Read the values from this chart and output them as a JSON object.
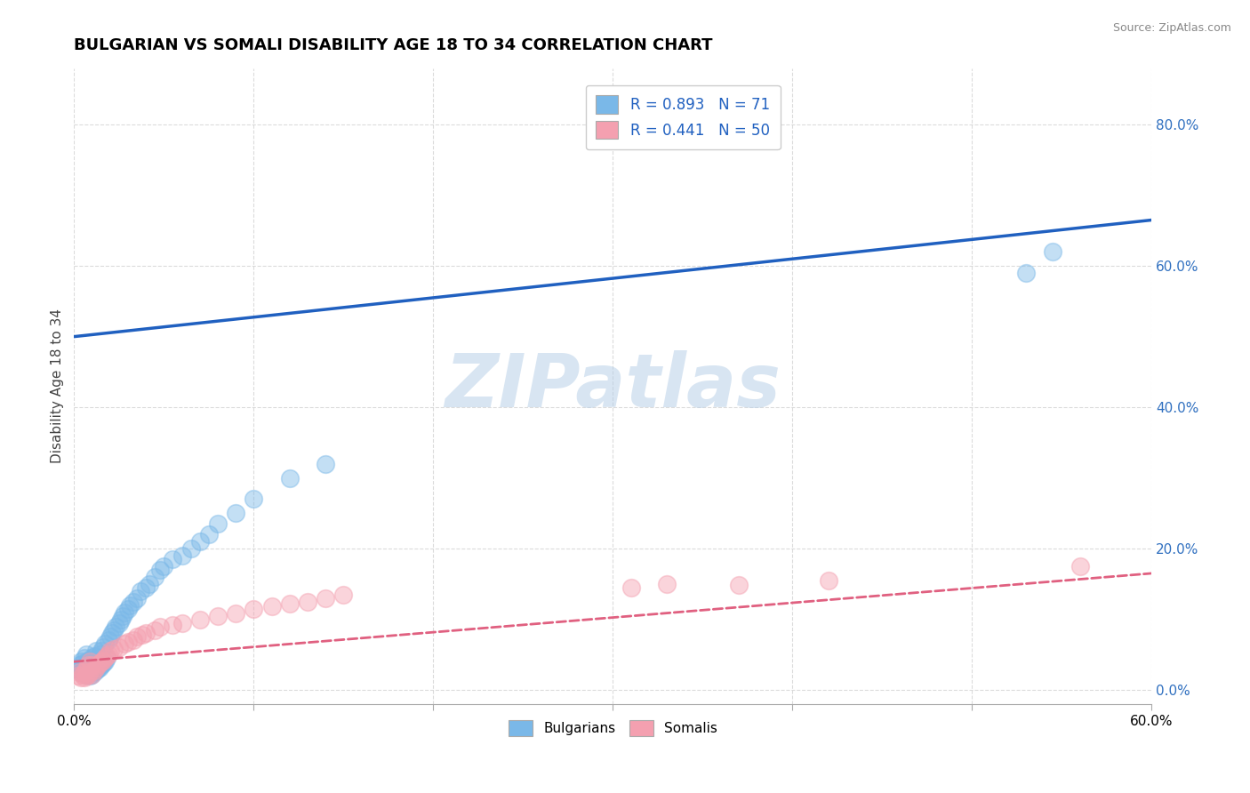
{
  "title": "BULGARIAN VS SOMALI DISABILITY AGE 18 TO 34 CORRELATION CHART",
  "source": "Source: ZipAtlas.com",
  "xlabel": "",
  "ylabel": "Disability Age 18 to 34",
  "xlim": [
    0.0,
    0.6
  ],
  "ylim": [
    -0.02,
    0.88
  ],
  "xticks": [
    0.0,
    0.1,
    0.2,
    0.3,
    0.4,
    0.5,
    0.6
  ],
  "yticks": [
    0.0,
    0.2,
    0.4,
    0.6,
    0.8
  ],
  "ytick_labels": [
    "0.0%",
    "20.0%",
    "40.0%",
    "60.0%",
    "80.0%"
  ],
  "bulgarian_color": "#7ab8e8",
  "somali_color": "#f4a0b0",
  "bulgarian_line_color": "#2060c0",
  "somali_line_color": "#e06080",
  "r_bulgarian": 0.893,
  "n_bulgarian": 71,
  "r_somali": 0.441,
  "n_somali": 50,
  "watermark": "ZIPatlas",
  "legend_label_1": "Bulgarians",
  "legend_label_2": "Somalis",
  "background_color": "#ffffff",
  "grid_color": "#cccccc",
  "bulgarian_line_x0": 0.0,
  "bulgarian_line_y0": 0.5,
  "bulgarian_line_x1": 0.6,
  "bulgarian_line_y1": 0.665,
  "somali_line_x0": 0.0,
  "somali_line_y0": 0.04,
  "somali_line_x1": 0.6,
  "somali_line_y1": 0.165,
  "bulgarian_x": [
    0.002,
    0.003,
    0.004,
    0.004,
    0.005,
    0.005,
    0.005,
    0.006,
    0.006,
    0.006,
    0.007,
    0.007,
    0.007,
    0.007,
    0.008,
    0.008,
    0.008,
    0.009,
    0.009,
    0.009,
    0.01,
    0.01,
    0.01,
    0.011,
    0.011,
    0.011,
    0.012,
    0.012,
    0.012,
    0.013,
    0.013,
    0.014,
    0.014,
    0.015,
    0.015,
    0.016,
    0.016,
    0.017,
    0.017,
    0.018,
    0.019,
    0.02,
    0.021,
    0.022,
    0.023,
    0.025,
    0.026,
    0.027,
    0.028,
    0.03,
    0.031,
    0.033,
    0.035,
    0.037,
    0.04,
    0.042,
    0.045,
    0.048,
    0.05,
    0.055,
    0.06,
    0.065,
    0.07,
    0.075,
    0.08,
    0.09,
    0.1,
    0.12,
    0.14,
    0.53,
    0.545
  ],
  "bulgarian_y": [
    0.03,
    0.035,
    0.025,
    0.04,
    0.028,
    0.032,
    0.038,
    0.025,
    0.03,
    0.045,
    0.022,
    0.028,
    0.035,
    0.05,
    0.025,
    0.032,
    0.042,
    0.02,
    0.03,
    0.04,
    0.022,
    0.03,
    0.045,
    0.025,
    0.035,
    0.048,
    0.028,
    0.038,
    0.055,
    0.03,
    0.045,
    0.032,
    0.05,
    0.035,
    0.055,
    0.038,
    0.06,
    0.04,
    0.065,
    0.045,
    0.07,
    0.075,
    0.08,
    0.085,
    0.09,
    0.095,
    0.1,
    0.105,
    0.11,
    0.115,
    0.12,
    0.125,
    0.13,
    0.14,
    0.145,
    0.15,
    0.16,
    0.17,
    0.175,
    0.185,
    0.19,
    0.2,
    0.21,
    0.22,
    0.235,
    0.25,
    0.27,
    0.3,
    0.32,
    0.59,
    0.62
  ],
  "somali_x": [
    0.002,
    0.003,
    0.004,
    0.005,
    0.006,
    0.006,
    0.007,
    0.007,
    0.008,
    0.008,
    0.009,
    0.009,
    0.01,
    0.01,
    0.011,
    0.012,
    0.013,
    0.014,
    0.015,
    0.016,
    0.017,
    0.018,
    0.019,
    0.02,
    0.022,
    0.025,
    0.028,
    0.03,
    0.033,
    0.035,
    0.038,
    0.04,
    0.045,
    0.048,
    0.055,
    0.06,
    0.07,
    0.08,
    0.09,
    0.1,
    0.11,
    0.12,
    0.13,
    0.14,
    0.15,
    0.31,
    0.33,
    0.37,
    0.42,
    0.56
  ],
  "somali_y": [
    0.02,
    0.025,
    0.018,
    0.022,
    0.018,
    0.025,
    0.02,
    0.03,
    0.022,
    0.035,
    0.025,
    0.04,
    0.022,
    0.035,
    0.028,
    0.032,
    0.035,
    0.038,
    0.04,
    0.042,
    0.045,
    0.048,
    0.05,
    0.055,
    0.058,
    0.06,
    0.065,
    0.068,
    0.07,
    0.075,
    0.078,
    0.08,
    0.085,
    0.09,
    0.092,
    0.095,
    0.1,
    0.105,
    0.108,
    0.115,
    0.118,
    0.122,
    0.125,
    0.13,
    0.135,
    0.145,
    0.15,
    0.148,
    0.155,
    0.175
  ]
}
